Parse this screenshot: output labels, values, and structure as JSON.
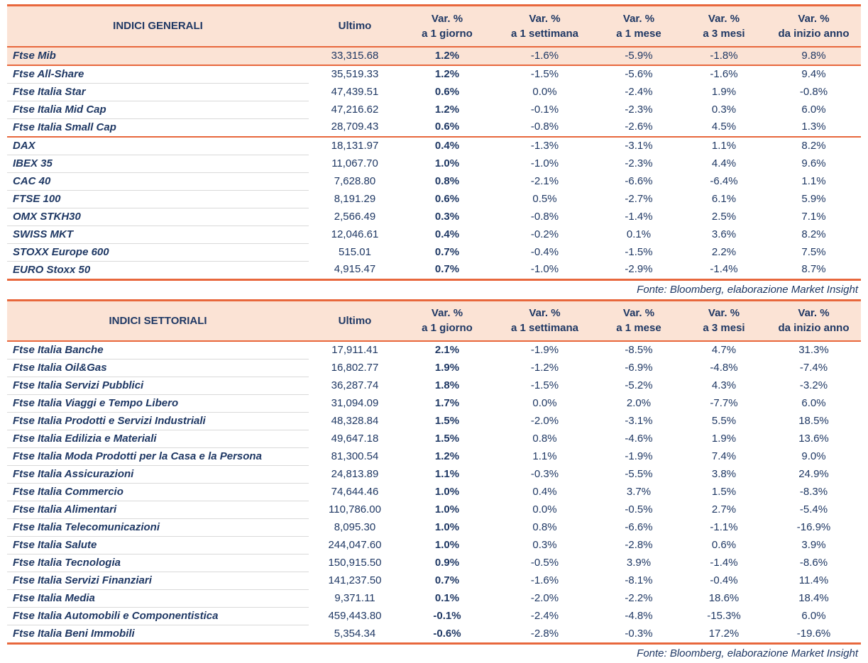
{
  "colors": {
    "accent_line": "#E8673C",
    "header_bg": "#FBE3D5",
    "highlight_row_bg": "#FBE3D5",
    "text": "#1F3864",
    "row_divider": "#D9D9D9"
  },
  "header_labels": {
    "ultimo": "Ultimo",
    "var_line1": "Var. %",
    "periods": [
      "a 1 giorno",
      "a 1 settimana",
      "a 1 mese",
      "a 3 mesi",
      "da inizio anno"
    ]
  },
  "chart_data": [
    {
      "type": "table",
      "title": "INDICI GENERALI",
      "columns": [
        "INDICI GENERALI",
        "Ultimo",
        "Var. % a 1 giorno",
        "Var. % a 1 settimana",
        "Var. % a 1 mese",
        "Var. % a 3 mesi",
        "Var. % da inizio anno"
      ],
      "source_note": "Fonte: Bloomberg, elaborazione Market Insight",
      "groups": [
        {
          "rows": [
            {
              "name": "Ftse Mib",
              "ultimo": "33,315.68",
              "var_1d": "1.2%",
              "var_1w": "-1.6%",
              "var_1m": "-5.9%",
              "var_3m": "-1.8%",
              "var_ytd": "9.8%",
              "highlight": true
            },
            {
              "name": "Ftse All-Share",
              "ultimo": "35,519.33",
              "var_1d": "1.2%",
              "var_1w": "-1.5%",
              "var_1m": "-5.6%",
              "var_3m": "-1.6%",
              "var_ytd": "9.4%"
            },
            {
              "name": "Ftse Italia Star",
              "ultimo": "47,439.51",
              "var_1d": "0.6%",
              "var_1w": "0.0%",
              "var_1m": "-2.4%",
              "var_3m": "1.9%",
              "var_ytd": "-0.8%"
            },
            {
              "name": "Ftse Italia Mid Cap",
              "ultimo": "47,216.62",
              "var_1d": "1.2%",
              "var_1w": "-0.1%",
              "var_1m": "-2.3%",
              "var_3m": "0.3%",
              "var_ytd": "6.0%"
            },
            {
              "name": "Ftse Italia Small Cap",
              "ultimo": "28,709.43",
              "var_1d": "0.6%",
              "var_1w": "-0.8%",
              "var_1m": "-2.6%",
              "var_3m": "4.5%",
              "var_ytd": "1.3%"
            }
          ]
        },
        {
          "rows": [
            {
              "name": "DAX",
              "ultimo": "18,131.97",
              "var_1d": "0.4%",
              "var_1w": "-1.3%",
              "var_1m": "-3.1%",
              "var_3m": "1.1%",
              "var_ytd": "8.2%"
            },
            {
              "name": "IBEX 35",
              "ultimo": "11,067.70",
              "var_1d": "1.0%",
              "var_1w": "-1.0%",
              "var_1m": "-2.3%",
              "var_3m": "4.4%",
              "var_ytd": "9.6%"
            },
            {
              "name": "CAC 40",
              "ultimo": "7,628.80",
              "var_1d": "0.8%",
              "var_1w": "-2.1%",
              "var_1m": "-6.6%",
              "var_3m": "-6.4%",
              "var_ytd": "1.1%"
            },
            {
              "name": "FTSE 100",
              "ultimo": "8,191.29",
              "var_1d": "0.6%",
              "var_1w": "0.5%",
              "var_1m": "-2.7%",
              "var_3m": "6.1%",
              "var_ytd": "5.9%"
            },
            {
              "name": "OMX STKH30",
              "ultimo": "2,566.49",
              "var_1d": "0.3%",
              "var_1w": "-0.8%",
              "var_1m": "-1.4%",
              "var_3m": "2.5%",
              "var_ytd": "7.1%"
            },
            {
              "name": "SWISS MKT",
              "ultimo": "12,046.61",
              "var_1d": "0.4%",
              "var_1w": "-0.2%",
              "var_1m": "0.1%",
              "var_3m": "3.6%",
              "var_ytd": "8.2%"
            },
            {
              "name": "STOXX Europe 600",
              "ultimo": "515.01",
              "var_1d": "0.7%",
              "var_1w": "-0.4%",
              "var_1m": "-1.5%",
              "var_3m": "2.2%",
              "var_ytd": "7.5%"
            },
            {
              "name": "EURO Stoxx 50",
              "ultimo": "4,915.47",
              "var_1d": "0.7%",
              "var_1w": "-1.0%",
              "var_1m": "-2.9%",
              "var_3m": "-1.4%",
              "var_ytd": "8.7%"
            }
          ]
        }
      ]
    },
    {
      "type": "table",
      "title": "INDICI SETTORIALI",
      "columns": [
        "INDICI SETTORIALI",
        "Ultimo",
        "Var. % a 1 giorno",
        "Var. % a 1 settimana",
        "Var. % a 1 mese",
        "Var. % a 3 mesi",
        "Var. % da inizio anno"
      ],
      "source_note": "Fonte: Bloomberg, elaborazione Market Insight",
      "groups": [
        {
          "rows": [
            {
              "name": "Ftse Italia Banche",
              "ultimo": "17,911.41",
              "var_1d": "2.1%",
              "var_1w": "-1.9%",
              "var_1m": "-8.5%",
              "var_3m": "4.7%",
              "var_ytd": "31.3%"
            },
            {
              "name": "Ftse Italia Oil&Gas",
              "ultimo": "16,802.77",
              "var_1d": "1.9%",
              "var_1w": "-1.2%",
              "var_1m": "-6.9%",
              "var_3m": "-4.8%",
              "var_ytd": "-7.4%"
            },
            {
              "name": "Ftse Italia Servizi Pubblici",
              "ultimo": "36,287.74",
              "var_1d": "1.8%",
              "var_1w": "-1.5%",
              "var_1m": "-5.2%",
              "var_3m": "4.3%",
              "var_ytd": "-3.2%"
            },
            {
              "name": "Ftse Italia Viaggi e Tempo Libero",
              "ultimo": "31,094.09",
              "var_1d": "1.7%",
              "var_1w": "0.0%",
              "var_1m": "2.0%",
              "var_3m": "-7.7%",
              "var_ytd": "6.0%"
            },
            {
              "name": "Ftse Italia Prodotti e Servizi Industriali",
              "ultimo": "48,328.84",
              "var_1d": "1.5%",
              "var_1w": "-2.0%",
              "var_1m": "-3.1%",
              "var_3m": "5.5%",
              "var_ytd": "18.5%"
            },
            {
              "name": "Ftse Italia Edilizia e Materiali",
              "ultimo": "49,647.18",
              "var_1d": "1.5%",
              "var_1w": "0.8%",
              "var_1m": "-4.6%",
              "var_3m": "1.9%",
              "var_ytd": "13.6%"
            },
            {
              "name": "Ftse Italia Moda Prodotti per la Casa e la Persona",
              "ultimo": "81,300.54",
              "var_1d": "1.2%",
              "var_1w": "1.1%",
              "var_1m": "-1.9%",
              "var_3m": "7.4%",
              "var_ytd": "9.0%"
            },
            {
              "name": "Ftse Italia Assicurazioni",
              "ultimo": "24,813.89",
              "var_1d": "1.1%",
              "var_1w": "-0.3%",
              "var_1m": "-5.5%",
              "var_3m": "3.8%",
              "var_ytd": "24.9%"
            },
            {
              "name": "Ftse Italia Commercio",
              "ultimo": "74,644.46",
              "var_1d": "1.0%",
              "var_1w": "0.4%",
              "var_1m": "3.7%",
              "var_3m": "1.5%",
              "var_ytd": "-8.3%"
            },
            {
              "name": "Ftse Italia Alimentari",
              "ultimo": "110,786.00",
              "var_1d": "1.0%",
              "var_1w": "0.0%",
              "var_1m": "-0.5%",
              "var_3m": "2.7%",
              "var_ytd": "-5.4%"
            },
            {
              "name": "Ftse Italia Telecomunicazioni",
              "ultimo": "8,095.30",
              "var_1d": "1.0%",
              "var_1w": "0.8%",
              "var_1m": "-6.6%",
              "var_3m": "-1.1%",
              "var_ytd": "-16.9%"
            },
            {
              "name": "Ftse Italia Salute",
              "ultimo": "244,047.60",
              "var_1d": "1.0%",
              "var_1w": "0.3%",
              "var_1m": "-2.8%",
              "var_3m": "0.6%",
              "var_ytd": "3.9%"
            },
            {
              "name": "Ftse Italia Tecnologia",
              "ultimo": "150,915.50",
              "var_1d": "0.9%",
              "var_1w": "-0.5%",
              "var_1m": "3.9%",
              "var_3m": "-1.4%",
              "var_ytd": "-8.6%"
            },
            {
              "name": "Ftse Italia Servizi Finanziari",
              "ultimo": "141,237.50",
              "var_1d": "0.7%",
              "var_1w": "-1.6%",
              "var_1m": "-8.1%",
              "var_3m": "-0.4%",
              "var_ytd": "11.4%"
            },
            {
              "name": "Ftse Italia Media",
              "ultimo": "9,371.11",
              "var_1d": "0.1%",
              "var_1w": "-2.0%",
              "var_1m": "-2.2%",
              "var_3m": "18.6%",
              "var_ytd": "18.4%"
            },
            {
              "name": "Ftse Italia Automobili e Componentistica",
              "ultimo": "459,443.80",
              "var_1d": "-0.1%",
              "var_1w": "-2.4%",
              "var_1m": "-4.8%",
              "var_3m": "-15.3%",
              "var_ytd": "6.0%"
            },
            {
              "name": "Ftse Italia Beni Immobili",
              "ultimo": "5,354.34",
              "var_1d": "-0.6%",
              "var_1w": "-2.8%",
              "var_1m": "-0.3%",
              "var_3m": "17.2%",
              "var_ytd": "-19.6%"
            }
          ]
        }
      ]
    }
  ]
}
